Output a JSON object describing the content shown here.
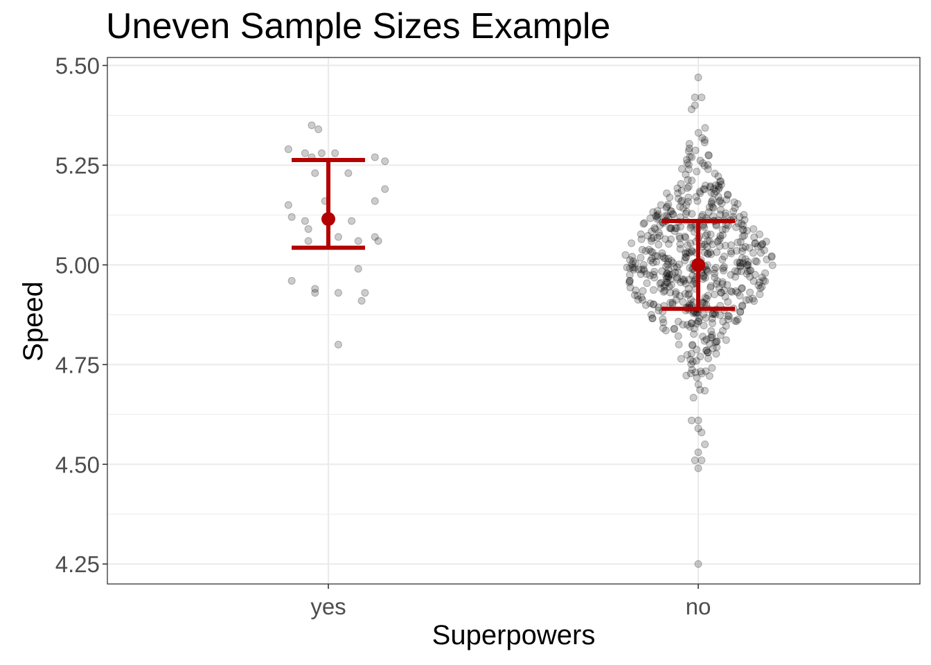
{
  "chart_data": {
    "type": "scatter",
    "title": "Uneven Sample Sizes Example",
    "xlabel": "Superpowers",
    "ylabel": "Speed",
    "categories": [
      "yes",
      "no"
    ],
    "ylim": [
      4.2,
      5.52
    ],
    "y_ticks": [
      "4.25",
      "4.50",
      "4.75",
      "5.00",
      "5.25",
      "5.50"
    ],
    "grid": true,
    "legend": "none",
    "point_color": "#000000",
    "summary_color": "#B30000",
    "summary": [
      {
        "category": "yes",
        "mean": 5.115,
        "lower": 5.043,
        "upper": 5.263
      },
      {
        "category": "no",
        "mean": 5.0,
        "lower": 4.89,
        "upper": 5.11
      }
    ],
    "series": [
      {
        "category": "yes",
        "points": [
          [
            -0.12,
            5.29
          ],
          [
            -0.07,
            5.28
          ],
          [
            -0.05,
            5.27
          ],
          [
            -0.02,
            5.28
          ],
          [
            0.02,
            5.28
          ],
          [
            -0.05,
            5.35
          ],
          [
            -0.03,
            5.34
          ],
          [
            0.06,
            5.23
          ],
          [
            0.14,
            5.27
          ],
          [
            0.17,
            5.26
          ],
          [
            -0.04,
            5.23
          ],
          [
            0.14,
            5.16
          ],
          [
            0.17,
            5.19
          ],
          [
            -0.12,
            5.15
          ],
          [
            -0.11,
            5.12
          ],
          [
            -0.01,
            5.16
          ],
          [
            -0.07,
            5.11
          ],
          [
            0.07,
            5.11
          ],
          [
            -0.06,
            5.09
          ],
          [
            -0.06,
            5.06
          ],
          [
            0.03,
            5.07
          ],
          [
            0.09,
            5.06
          ],
          [
            0.14,
            5.07
          ],
          [
            0.15,
            5.06
          ],
          [
            0.09,
            4.99
          ],
          [
            -0.11,
            4.96
          ],
          [
            -0.04,
            4.94
          ],
          [
            -0.04,
            4.93
          ],
          [
            0.03,
            4.93
          ],
          [
            0.11,
            4.93
          ],
          [
            0.1,
            4.91
          ],
          [
            0.03,
            4.8
          ]
        ]
      },
      {
        "category": "no",
        "n_points": 600,
        "points": [
          [
            0.0,
            5.47
          ],
          [
            -0.01,
            5.42
          ],
          [
            0.01,
            5.42
          ],
          [
            -0.01,
            5.4
          ],
          [
            -0.02,
            5.39
          ],
          [
            0.0,
            4.61
          ],
          [
            -0.02,
            4.61
          ],
          [
            0.0,
            4.59
          ],
          [
            0.01,
            4.58
          ],
          [
            0.02,
            4.55
          ],
          [
            0.0,
            4.53
          ],
          [
            0.01,
            4.51
          ],
          [
            -0.01,
            4.51
          ],
          [
            0.0,
            4.49
          ],
          [
            0.0,
            4.25
          ]
        ]
      }
    ]
  }
}
